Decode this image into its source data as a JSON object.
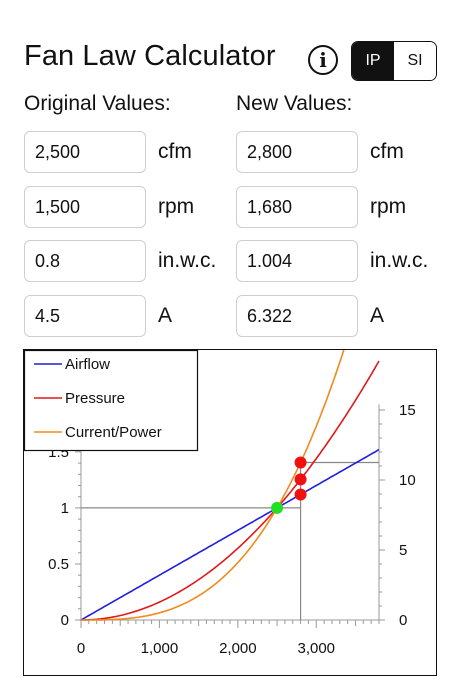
{
  "header": {
    "title": "Fan Law Calculator",
    "info_glyph": "i",
    "unit_toggle": {
      "options": [
        "IP",
        "SI"
      ],
      "selected": "IP"
    }
  },
  "original": {
    "heading": "Original Values:",
    "rows": [
      {
        "value": "2,500",
        "unit": "cfm"
      },
      {
        "value": "1,500",
        "unit": "rpm"
      },
      {
        "value": "0.8",
        "unit": "in.w.c."
      },
      {
        "value": "4.5",
        "unit": "A"
      }
    ]
  },
  "new": {
    "heading": "New Values:",
    "rows": [
      {
        "value": "2,800",
        "unit": "cfm"
      },
      {
        "value": "1,680",
        "unit": "rpm"
      },
      {
        "value": "1.004",
        "unit": "in.w.c."
      },
      {
        "value": "6.322",
        "unit": "A"
      }
    ]
  },
  "chart_data": {
    "type": "line",
    "title": "",
    "xlabel": "",
    "ylabel": "",
    "x_ticks": [
      "0",
      "1,000",
      "2,000",
      "3,000"
    ],
    "xlim": [
      0,
      3800
    ],
    "left_axis": {
      "ticks": [
        "0",
        "0.5",
        "1",
        "1.5"
      ],
      "ylim": [
        0,
        1.82
      ]
    },
    "right_axis": {
      "ticks": [
        "0",
        "5",
        "10",
        "15"
      ],
      "ylim": [
        0,
        15
      ]
    },
    "legend": {
      "placement": "top-left",
      "entries": [
        "Airflow",
        "Pressure",
        "Current/Power"
      ]
    },
    "series": [
      {
        "name": "Airflow",
        "color": "#1f1fdc",
        "law": "linear",
        "axis": "left",
        "ratio_at_x": [
          [
            0,
            0
          ],
          [
            2500,
            1
          ],
          [
            2800,
            1.12
          ],
          [
            3800,
            1.52
          ]
        ]
      },
      {
        "name": "Pressure",
        "color": "#e01818",
        "law": "square",
        "axis": "left",
        "ratio_at_x": [
          [
            0,
            0
          ],
          [
            2500,
            1
          ],
          [
            2800,
            1.2544
          ],
          [
            3800,
            2.31
          ]
        ]
      },
      {
        "name": "Current/Power",
        "color": "#f08a1c",
        "law": "cube",
        "axis": "left",
        "ratio_at_x": [
          [
            0,
            0
          ],
          [
            2500,
            1
          ],
          [
            2800,
            1.405
          ],
          [
            3800,
            3.51
          ]
        ]
      }
    ],
    "base_point": {
      "x": 2500,
      "ratio": 1,
      "color": "#22e022"
    },
    "new_points": {
      "x": 2800,
      "ratios": [
        1.12,
        1.2544,
        1.405
      ],
      "color": "#f01010"
    },
    "reference_lines": {
      "ratio": 1,
      "x": 2800,
      "color": "#888888"
    }
  }
}
